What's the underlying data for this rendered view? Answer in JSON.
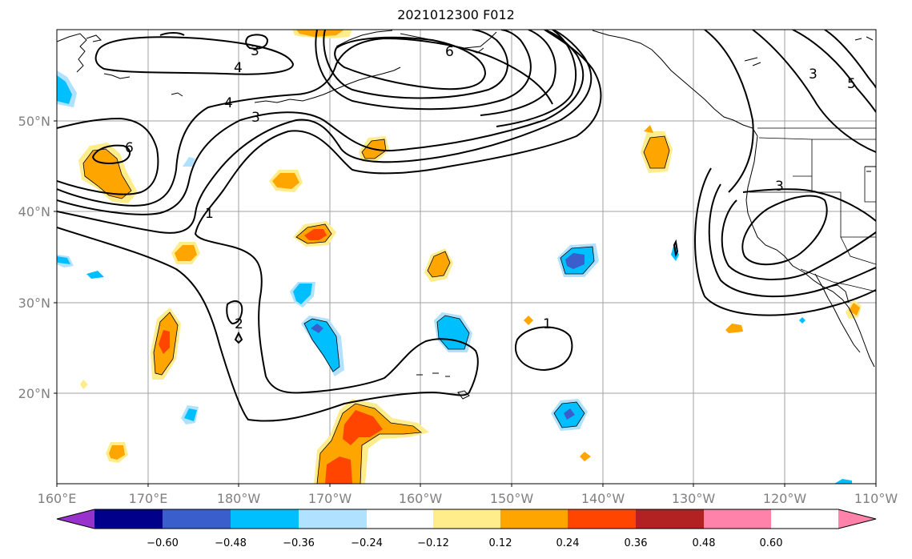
{
  "title": "2021012300 F012",
  "map": {
    "lon_ticks": [
      "160°E",
      "170°E",
      "180°W",
      "170°W",
      "160°W",
      "150°W",
      "140°W",
      "130°W",
      "120°W",
      "110°W"
    ],
    "lat_ticks": [
      "50°N",
      "40°N",
      "30°N",
      "20°N"
    ],
    "contour_labels": [
      "3",
      "4",
      "4",
      "3",
      "6",
      "6",
      "1",
      "2",
      "1",
      "3",
      "3",
      "5"
    ]
  },
  "colorbar": {
    "colors": [
      "#9932cc",
      "#00008b",
      "#3a5fcd",
      "#00bfff",
      "#b0e2ff",
      "#ffffff",
      "#ffec8b",
      "#ffa500",
      "#ff4500",
      "#b22222",
      "#ff82ab"
    ],
    "tick_labels": [
      "−0.60",
      "−0.48",
      "−0.36",
      "−0.24",
      "−0.12",
      "0.12",
      "0.24",
      "0.36",
      "0.48",
      "0.60"
    ]
  }
}
